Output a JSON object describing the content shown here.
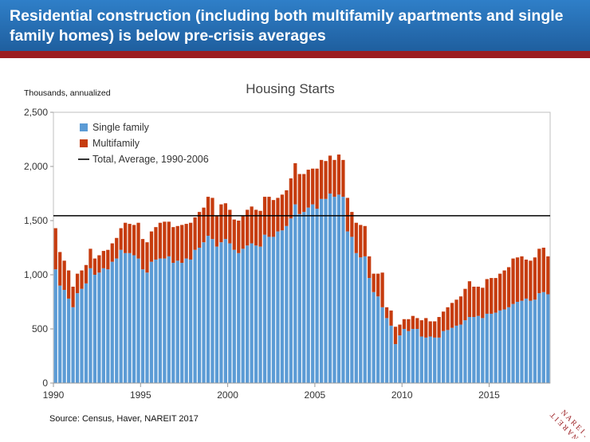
{
  "header": {
    "title": "Residential construction (including both multifamily apartments and single family homes) is below pre-crisis averages"
  },
  "units_label": "Thousands, annualized",
  "source": "Source: Census, Haver, NAREIT 2017",
  "logo_text": "NAREIT",
  "colors": {
    "banner": "#2a73bd",
    "banner_rule": "#9b1c20",
    "single_family": "#5b9bd5",
    "multifamily": "#c63c0f",
    "average_line": "#000000",
    "axis": "#999999"
  },
  "chart_data": {
    "type": "bar",
    "stacked": true,
    "title": "Housing Starts",
    "ylabel": "Thousands, annualized",
    "xlabel": "",
    "ylim": [
      0,
      2500
    ],
    "yticks": [
      "0",
      "500",
      "1,000",
      "1,500",
      "2,000",
      "2,500"
    ],
    "ytick_values": [
      0,
      500,
      1000,
      1500,
      2000,
      2500
    ],
    "xticks": [
      "1990",
      "1995",
      "2000",
      "2005",
      "2010",
      "2015"
    ],
    "xtick_values": [
      1990,
      1995,
      2000,
      2005,
      2010,
      2015
    ],
    "frequency": "quarterly",
    "x_start": "1990 Q1",
    "legend": [
      "Single family",
      "Multifamily",
      "Total, Average, 1990-2006"
    ],
    "legend_position": "top-left",
    "reference_line": {
      "name": "Total, Average, 1990-2006",
      "value": 1545
    },
    "series": [
      {
        "name": "Single family",
        "values": [
          1050,
          900,
          860,
          780,
          700,
          830,
          870,
          920,
          1060,
          1000,
          1020,
          1060,
          1050,
          1120,
          1150,
          1230,
          1200,
          1200,
          1180,
          1150,
          1050,
          1020,
          1120,
          1140,
          1150,
          1150,
          1170,
          1110,
          1130,
          1110,
          1150,
          1140,
          1230,
          1250,
          1300,
          1360,
          1330,
          1260,
          1300,
          1330,
          1290,
          1230,
          1200,
          1240,
          1270,
          1290,
          1270,
          1260,
          1370,
          1350,
          1350,
          1400,
          1410,
          1450,
          1520,
          1650,
          1560,
          1580,
          1620,
          1650,
          1610,
          1700,
          1700,
          1750,
          1720,
          1740,
          1720,
          1400,
          1350,
          1200,
          1160,
          1170,
          970,
          840,
          800,
          700,
          600,
          530,
          360,
          440,
          500,
          480,
          500,
          500,
          430,
          420,
          430,
          420,
          420,
          480,
          490,
          510,
          530,
          540,
          580,
          610,
          610,
          620,
          600,
          640,
          640,
          650,
          670,
          680,
          700,
          730,
          750,
          760,
          780,
          760,
          770,
          830,
          840,
          820
        ]
      },
      {
        "name": "Multifamily",
        "values": [
          380,
          310,
          270,
          260,
          190,
          180,
          170,
          170,
          180,
          150,
          160,
          160,
          180,
          170,
          190,
          200,
          280,
          270,
          280,
          330,
          280,
          280,
          280,
          300,
          330,
          340,
          320,
          330,
          320,
          350,
          320,
          340,
          300,
          330,
          320,
          360,
          380,
          280,
          350,
          330,
          310,
          280,
          300,
          300,
          330,
          340,
          330,
          330,
          350,
          370,
          340,
          310,
          330,
          330,
          370,
          380,
          370,
          350,
          350,
          330,
          370,
          360,
          350,
          350,
          340,
          370,
          340,
          310,
          230,
          280,
          300,
          280,
          200,
          170,
          210,
          320,
          100,
          140,
          160,
          100,
          90,
          110,
          120,
          100,
          150,
          180,
          140,
          150,
          190,
          180,
          210,
          230,
          240,
          260,
          290,
          330,
          280,
          270,
          280,
          320,
          330,
          320,
          340,
          360,
          370,
          420,
          410,
          410,
          360,
          370,
          390,
          410,
          410,
          350
        ]
      }
    ]
  }
}
